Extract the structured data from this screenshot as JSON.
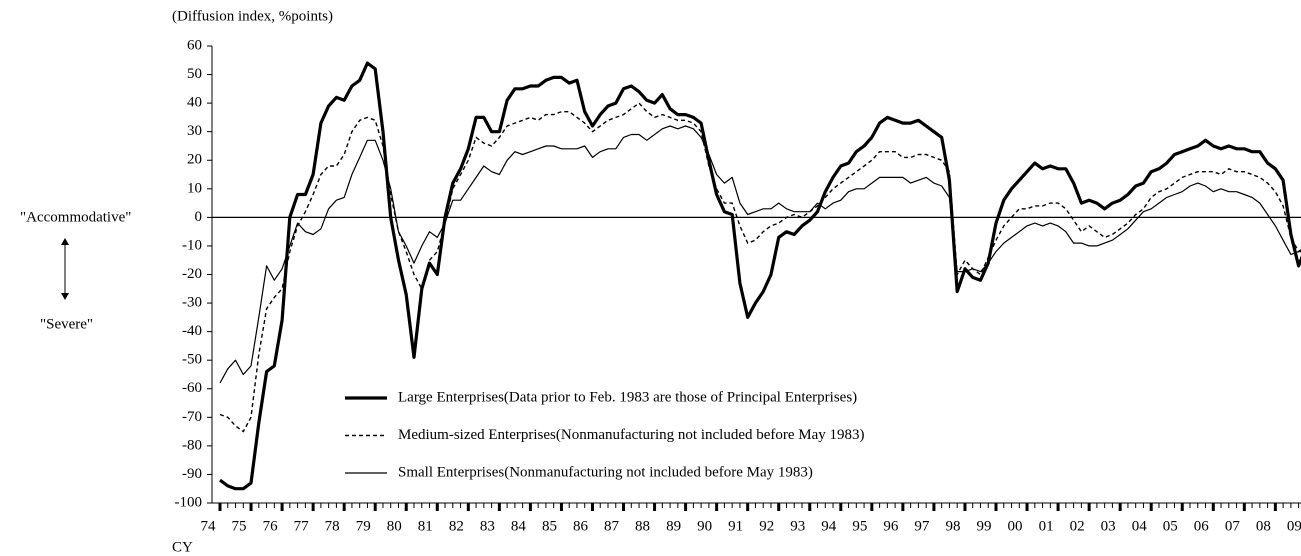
{
  "chart_data": {
    "type": "line",
    "ylabel": "(Diffusion index, %points)",
    "xlabel": "CY",
    "annotations": [
      "\"Accommodative\"",
      "\"Severe\""
    ],
    "categories": [
      "74",
      null,
      null,
      null,
      "75",
      null,
      null,
      null,
      "76",
      null,
      null,
      null,
      "77",
      null,
      null,
      null,
      "78",
      null,
      null,
      null,
      "79",
      null,
      null,
      null,
      "80",
      null,
      null,
      null,
      "81",
      null,
      null,
      null,
      "82",
      null,
      null,
      null,
      "83",
      null,
      null,
      null,
      "84",
      null,
      null,
      null,
      "85",
      null,
      null,
      null,
      "86",
      null,
      null,
      null,
      "87",
      null,
      null,
      null,
      "88",
      null,
      null,
      null,
      "89",
      null,
      null,
      null,
      "90",
      null,
      null,
      null,
      "91",
      null,
      null,
      null,
      "92",
      null,
      null,
      null,
      "93",
      null,
      null,
      null,
      "94",
      null,
      null,
      null,
      "95",
      null,
      null,
      null,
      "96",
      null,
      null,
      null,
      "97",
      null,
      null,
      null,
      "98",
      null,
      null,
      null,
      "99",
      null,
      null,
      null,
      "00",
      null,
      null,
      null,
      "01",
      null,
      null,
      null,
      "02",
      null,
      null,
      null,
      "03",
      null,
      null,
      null,
      "04",
      null,
      null,
      null,
      "05",
      null,
      null,
      null,
      "06",
      null,
      null,
      null,
      "07",
      null,
      null,
      null,
      "08",
      null,
      null,
      null,
      "09",
      null,
      null
    ],
    "series": [
      {
        "name": "Large  Enterprises(Data prior to Feb. 1983 are those of Principal Enterprises)",
        "color": "#000000",
        "linestyle": "bold",
        "values": [
          -92,
          -94,
          -95,
          -95,
          -93,
          -72,
          -54,
          -52,
          -36,
          0,
          8,
          8,
          15,
          33,
          39,
          42,
          41,
          46,
          48,
          54,
          52,
          30,
          0,
          -15,
          -27,
          -49,
          -25,
          -16,
          -20,
          0,
          12,
          17,
          24,
          35,
          35,
          30,
          30,
          41,
          45,
          45,
          46,
          46,
          48,
          49,
          49,
          47,
          48,
          37,
          32,
          36,
          39,
          40,
          45,
          46,
          44,
          41,
          40,
          43,
          38,
          36,
          36,
          35,
          33,
          20,
          8,
          2,
          1,
          -23,
          -35,
          -30,
          -26,
          -20,
          -7,
          -5,
          -6,
          -3,
          -1,
          2,
          9,
          14,
          18,
          19,
          23,
          25,
          28,
          33,
          35,
          34,
          33,
          33,
          34,
          32,
          30,
          28,
          13,
          -26,
          -18,
          -21,
          -22,
          -16,
          -2,
          6,
          10,
          13,
          16,
          19,
          17,
          18,
          17,
          17,
          12,
          5,
          6,
          5,
          3,
          5,
          6,
          8,
          11,
          12,
          16,
          17,
          19,
          22,
          23,
          24,
          25,
          27,
          25,
          24,
          25,
          24,
          24,
          23,
          23,
          19,
          17,
          13,
          -6,
          -17,
          -10,
          -4,
          -1
        ]
      },
      {
        "name": "Medium-sized  Enterprises(Nonmanufacturing not included before May 1983)",
        "color": "#000000",
        "linestyle": "dashed",
        "values": [
          -69,
          -70,
          -73,
          -75,
          -70,
          -48,
          -32,
          -28,
          -25,
          -12,
          -3,
          2,
          8,
          15,
          18,
          18,
          22,
          30,
          34,
          35,
          34,
          25,
          8,
          -5,
          -12,
          -20,
          -25,
          -15,
          -12,
          -2,
          10,
          15,
          20,
          28,
          26,
          25,
          28,
          32,
          33,
          34,
          35,
          34,
          36,
          36,
          37,
          37,
          35,
          33,
          30,
          32,
          34,
          35,
          36,
          38,
          40,
          37,
          35,
          36,
          35,
          34,
          34,
          33,
          30,
          18,
          10,
          5,
          5,
          -3,
          -9,
          -8,
          -5,
          -3,
          -2,
          0,
          1,
          0,
          2,
          4,
          7,
          10,
          12,
          14,
          16,
          18,
          20,
          23,
          23,
          23,
          21,
          21,
          22,
          22,
          21,
          20,
          16,
          -20,
          -15,
          -18,
          -20,
          -14,
          -8,
          -3,
          0,
          3,
          3,
          4,
          4,
          5,
          5,
          3,
          -1,
          -5,
          -3,
          -5,
          -7,
          -6,
          -4,
          -2,
          1,
          3,
          7,
          9,
          10,
          12,
          14,
          15,
          16,
          16,
          16,
          15,
          17,
          16,
          16,
          15,
          14,
          12,
          9,
          4,
          -7,
          -12,
          -10,
          -6,
          -4
        ]
      },
      {
        "name": "Small  Enterprises(Nonmanufacturing not included before May 1983)",
        "color": "#000000",
        "linestyle": "solid",
        "values": [
          -58,
          -53,
          -50,
          -55,
          -52,
          -35,
          -17,
          -22,
          -18,
          -10,
          -2,
          -5,
          -6,
          -4,
          3,
          6,
          7,
          15,
          21,
          27,
          27,
          20,
          10,
          -5,
          -10,
          -16,
          -10,
          -5,
          -7,
          -2,
          6,
          6,
          10,
          14,
          18,
          16,
          15,
          20,
          23,
          22,
          23,
          24,
          25,
          25,
          24,
          24,
          24,
          25,
          21,
          23,
          24,
          24,
          28,
          29,
          29,
          27,
          29,
          31,
          32,
          31,
          32,
          31,
          28,
          22,
          15,
          12,
          14,
          5,
          1,
          2,
          3,
          3,
          5,
          3,
          2,
          2,
          2,
          5,
          3,
          5,
          6,
          9,
          10,
          10,
          12,
          14,
          14,
          14,
          14,
          12,
          13,
          14,
          12,
          11,
          7,
          -19,
          -19,
          -18,
          -19,
          -16,
          -12,
          -9,
          -7,
          -5,
          -3,
          -2,
          -3,
          -2,
          -3,
          -5,
          -9,
          -9,
          -10,
          -10,
          -9,
          -8,
          -6,
          -4,
          -1,
          2,
          3,
          5,
          7,
          8,
          9,
          11,
          12,
          11,
          9,
          10,
          9,
          9,
          8,
          7,
          5,
          1,
          -3,
          -8,
          -13,
          -12,
          -12,
          -11,
          -11
        ]
      }
    ],
    "ylim": [
      -100,
      60
    ],
    "yticks": [
      -100,
      -90,
      -80,
      -70,
      -60,
      -50,
      -40,
      -30,
      -20,
      -10,
      0,
      10,
      20,
      30,
      40,
      50,
      60
    ],
    "zero_line": true
  }
}
